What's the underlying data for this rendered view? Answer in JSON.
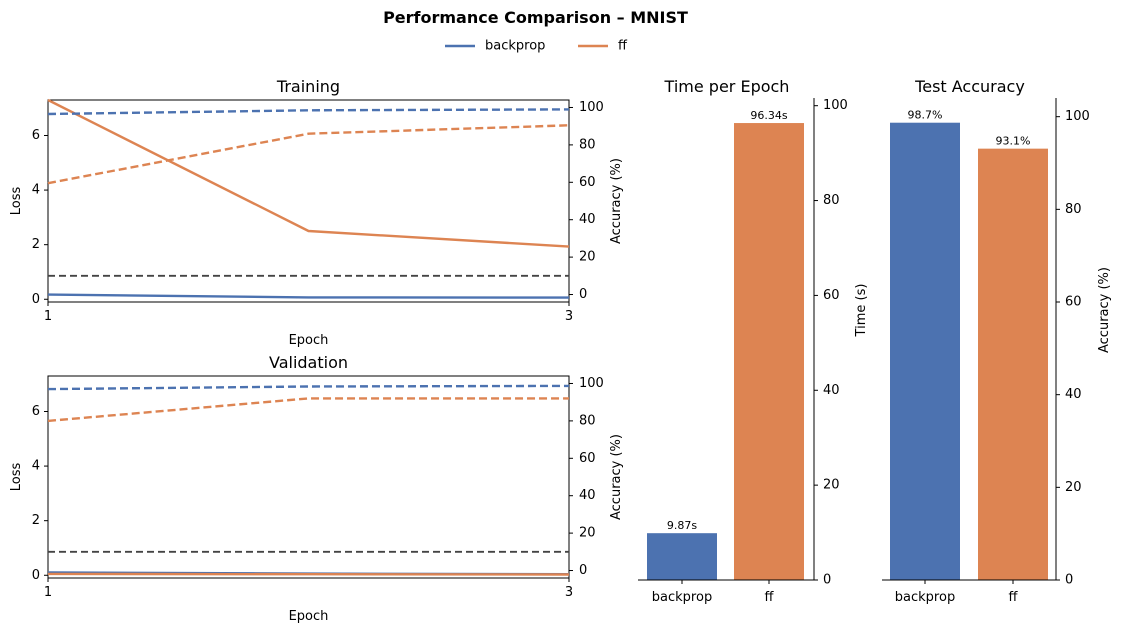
{
  "figure": {
    "title": "Performance Comparison – MNIST",
    "legend": {
      "placement": "top-center",
      "entries": [
        {
          "name": "backprop",
          "color": "#4c72b0"
        },
        {
          "name": "ff",
          "color": "#dd8452"
        }
      ]
    }
  },
  "chart_data": [
    {
      "type": "line",
      "title": "Training",
      "xlabel": "Epoch",
      "ylabel": "Loss",
      "ylabel_right": "Accuracy (%)",
      "x": [
        1,
        2,
        3
      ],
      "xticks": [
        "1",
        "3"
      ],
      "xlim": [
        1,
        3
      ],
      "ylim": [
        -0.1,
        7.3
      ],
      "yticks": [
        "0",
        "2",
        "4",
        "6"
      ],
      "ylim_right": [
        -4,
        104
      ],
      "yticks_right": [
        "0",
        "20",
        "40",
        "60",
        "80",
        "100"
      ],
      "grid": false,
      "series": [
        {
          "name": "backprop",
          "metric": "loss",
          "axis": "left",
          "style": "solid",
          "color": "#4c72b0",
          "values": [
            0.17,
            0.07,
            0.06
          ]
        },
        {
          "name": "ff",
          "metric": "loss",
          "axis": "left",
          "style": "solid",
          "color": "#dd8452",
          "values": [
            7.3,
            2.5,
            1.93
          ]
        },
        {
          "name": "backprop",
          "metric": "accuracy",
          "axis": "right",
          "style": "dashed",
          "color": "#4c72b0",
          "values": [
            96.5,
            98.5,
            99.0
          ]
        },
        {
          "name": "ff",
          "metric": "accuracy",
          "axis": "right",
          "style": "dashed",
          "color": "#dd8452",
          "values": [
            59.5,
            86.0,
            90.5
          ]
        }
      ],
      "reference_line": {
        "axis": "right",
        "value": 10,
        "style": "dashed",
        "color": "#444444"
      }
    },
    {
      "type": "line",
      "title": "Validation",
      "xlabel": "Epoch",
      "ylabel": "Loss",
      "ylabel_right": "Accuracy (%)",
      "x": [
        1,
        2,
        3
      ],
      "xticks": [
        "1",
        "3"
      ],
      "xlim": [
        1,
        3
      ],
      "ylim": [
        -0.1,
        7.3
      ],
      "yticks": [
        "0",
        "2",
        "4",
        "6"
      ],
      "ylim_right": [
        -4,
        104
      ],
      "yticks_right": [
        "0",
        "20",
        "40",
        "60",
        "80",
        "100"
      ],
      "grid": false,
      "series": [
        {
          "name": "backprop",
          "metric": "loss",
          "axis": "left",
          "style": "solid",
          "color": "#4c72b0",
          "values": [
            0.1,
            0.06,
            0.04
          ]
        },
        {
          "name": "ff",
          "metric": "loss",
          "axis": "left",
          "style": "solid",
          "color": "#dd8452",
          "values": [
            0.05,
            0.04,
            0.03
          ]
        },
        {
          "name": "backprop",
          "metric": "accuracy",
          "axis": "right",
          "style": "dashed",
          "color": "#4c72b0",
          "values": [
            97.0,
            98.4,
            98.7
          ]
        },
        {
          "name": "ff",
          "metric": "accuracy",
          "axis": "right",
          "style": "dashed",
          "color": "#dd8452",
          "values": [
            80.0,
            92.0,
            92.0
          ]
        }
      ],
      "reference_line": {
        "axis": "right",
        "value": 10,
        "style": "dashed",
        "color": "#444444"
      }
    },
    {
      "type": "bar",
      "title": "Time per Epoch",
      "categories": [
        "backprop",
        "ff"
      ],
      "values": [
        9.87,
        96.34
      ],
      "data_labels": [
        "9.87s",
        "96.34s"
      ],
      "colors": [
        "#4c72b0",
        "#dd8452"
      ],
      "ylabel": "Time (s)",
      "axis_side": "right",
      "ylim": [
        0,
        101.2
      ],
      "yticks": [
        "0",
        "20",
        "40",
        "60",
        "80",
        "100"
      ],
      "grid": false
    },
    {
      "type": "bar",
      "title": "Test Accuracy",
      "categories": [
        "backprop",
        "ff"
      ],
      "values": [
        98.7,
        93.1
      ],
      "data_labels": [
        "98.7%",
        "93.1%"
      ],
      "colors": [
        "#4c72b0",
        "#dd8452"
      ],
      "ylabel": "Accuracy (%)",
      "axis_side": "right",
      "ylim": [
        0,
        103.6
      ],
      "yticks": [
        "0",
        "20",
        "40",
        "60",
        "80",
        "100"
      ],
      "grid": false
    }
  ]
}
